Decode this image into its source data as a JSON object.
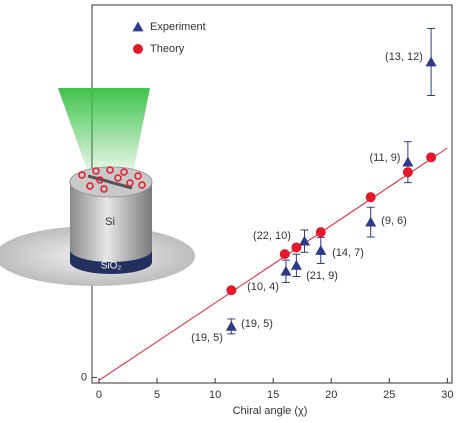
{
  "chart_data": {
    "type": "scatter",
    "x_label": "Chiral angle (χ)",
    "xlim": [
      -0.6,
      30.4
    ],
    "xticks": [
      0,
      5,
      10,
      15,
      20,
      25,
      30
    ],
    "ylim": [
      -0.15,
      10
    ],
    "yticks": [
      0
    ],
    "legend": "upper left",
    "series": [
      {
        "name": "Experiment",
        "color": "#2e3a87",
        "marker": "triangle",
        "x": [
          11.4,
          16.1,
          17.0,
          17.7,
          19.1,
          23.4,
          26.6,
          28.6
        ],
        "values": [
          1.37,
          2.85,
          3.01,
          3.66,
          3.41,
          4.17,
          5.78,
          8.47
        ],
        "errors": [
          0.2,
          0.3,
          0.3,
          0.3,
          0.35,
          0.4,
          0.55,
          0.9
        ]
      },
      {
        "name": "Theory",
        "color": "#e3192b",
        "marker": "circle",
        "x": [
          11.4,
          16.0,
          17.0,
          19.1,
          23.4,
          26.6,
          28.6
        ],
        "values": [
          2.34,
          3.31,
          3.49,
          3.9,
          4.84,
          5.51,
          5.91
        ]
      }
    ],
    "fit_line": {
      "color": "#e3192b",
      "x": [
        0,
        30
      ],
      "values": [
        -0.08,
        6.16
      ]
    },
    "annotations": [
      "(13, 12)",
      "(11, 9)",
      "(9, 6)",
      "(22, 10)",
      "(14, 7)",
      "(21, 9)",
      "(10, 4)",
      "(19, 5)",
      "(19, 5)"
    ],
    "inset_labels": [
      "Si",
      "SiO₂"
    ]
  }
}
